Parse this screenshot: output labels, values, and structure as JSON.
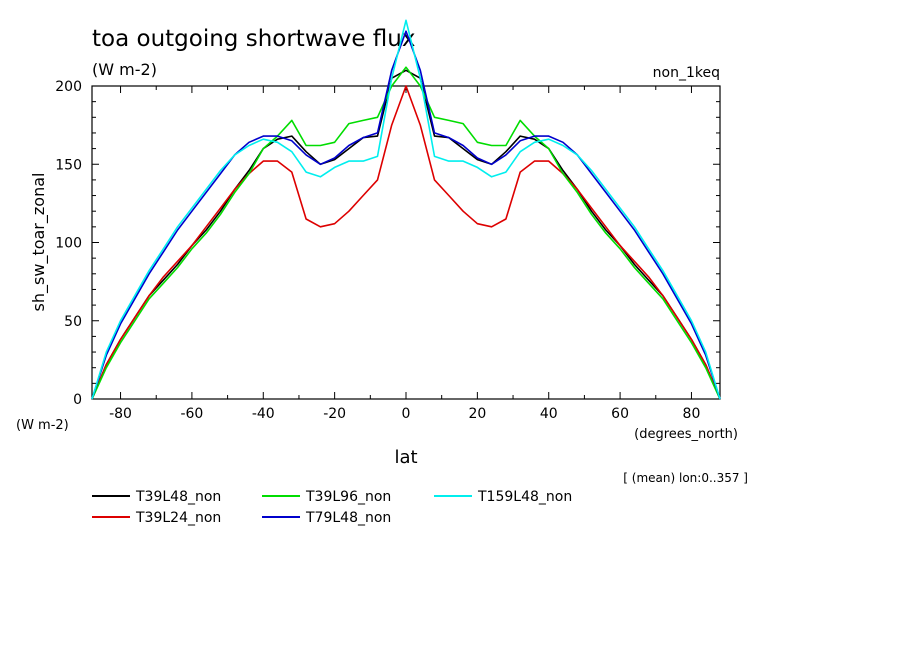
{
  "chart_data": {
    "type": "line",
    "title": "toa outgoing shortwave flux",
    "subtitle": "(W m-2)",
    "experiment_label": "non_1keq",
    "ylabel": "sh_sw_toar_zonal",
    "ylabel_units": "(W m-2)",
    "xlabel": "lat",
    "xlabel_units": "(degrees_north)",
    "averaging_note": "[ (mean) lon:0..357 ]",
    "xlim": [
      -88,
      88
    ],
    "ylim": [
      0,
      200
    ],
    "x_ticks": [
      "-80",
      "-60",
      "-40",
      "-20",
      "0",
      "20",
      "40",
      "60",
      "80"
    ],
    "y_ticks": [
      "0",
      "50",
      "100",
      "150",
      "200"
    ],
    "legend_position": "bottom",
    "grid": false,
    "x": [
      -88,
      -84,
      -80,
      -76,
      -72,
      -68,
      -64,
      -60,
      -56,
      -52,
      -48,
      -44,
      -40,
      -36,
      -32,
      -28,
      -24,
      -20,
      -16,
      -12,
      -8,
      -4,
      0,
      4,
      8,
      12,
      16,
      20,
      24,
      28,
      32,
      36,
      40,
      44,
      48,
      52,
      56,
      60,
      64,
      68,
      72,
      76,
      80,
      84,
      88
    ],
    "series": [
      {
        "name": "T39L48_non",
        "color": "#000000",
        "values": [
          0,
          22,
          38,
          52,
          66,
          76,
          86,
          98,
          108,
          120,
          134,
          146,
          160,
          166,
          168,
          158,
          150,
          153,
          160,
          167,
          168,
          205,
          210,
          205,
          168,
          167,
          160,
          153,
          150,
          158,
          168,
          166,
          160,
          146,
          134,
          120,
          108,
          98,
          86,
          76,
          66,
          52,
          38,
          22,
          0
        ]
      },
      {
        "name": "T39L24_non",
        "color": "#dd0000",
        "values": [
          0,
          22,
          38,
          52,
          66,
          78,
          88,
          98,
          110,
          122,
          134,
          144,
          152,
          152,
          145,
          115,
          110,
          112,
          120,
          130,
          140,
          175,
          200,
          175,
          140,
          130,
          120,
          112,
          110,
          115,
          145,
          152,
          152,
          144,
          134,
          122,
          110,
          98,
          88,
          78,
          66,
          52,
          38,
          22,
          0
        ]
      },
      {
        "name": "T39L96_non",
        "color": "#00dd00",
        "values": [
          0,
          20,
          36,
          50,
          64,
          74,
          84,
          96,
          106,
          118,
          132,
          144,
          160,
          168,
          178,
          162,
          162,
          164,
          176,
          178,
          180,
          200,
          212,
          200,
          180,
          178,
          176,
          164,
          162,
          162,
          178,
          168,
          160,
          144,
          132,
          118,
          106,
          96,
          84,
          74,
          64,
          50,
          36,
          20,
          0
        ]
      },
      {
        "name": "T79L48_non",
        "color": "#0000cc",
        "values": [
          0,
          28,
          48,
          64,
          80,
          94,
          108,
          120,
          132,
          144,
          156,
          164,
          168,
          168,
          165,
          156,
          150,
          154,
          162,
          167,
          170,
          210,
          235,
          210,
          170,
          167,
          162,
          154,
          150,
          156,
          165,
          168,
          168,
          164,
          156,
          144,
          132,
          120,
          108,
          94,
          80,
          64,
          48,
          28,
          0
        ]
      },
      {
        "name": "T159L48_non",
        "color": "#00eeee",
        "values": [
          0,
          30,
          50,
          66,
          82,
          96,
          110,
          122,
          134,
          146,
          156,
          162,
          166,
          164,
          158,
          145,
          142,
          148,
          152,
          152,
          155,
          205,
          242,
          205,
          155,
          152,
          152,
          148,
          142,
          145,
          158,
          164,
          166,
          162,
          156,
          146,
          134,
          122,
          110,
          96,
          82,
          66,
          50,
          30,
          0
        ]
      }
    ]
  }
}
